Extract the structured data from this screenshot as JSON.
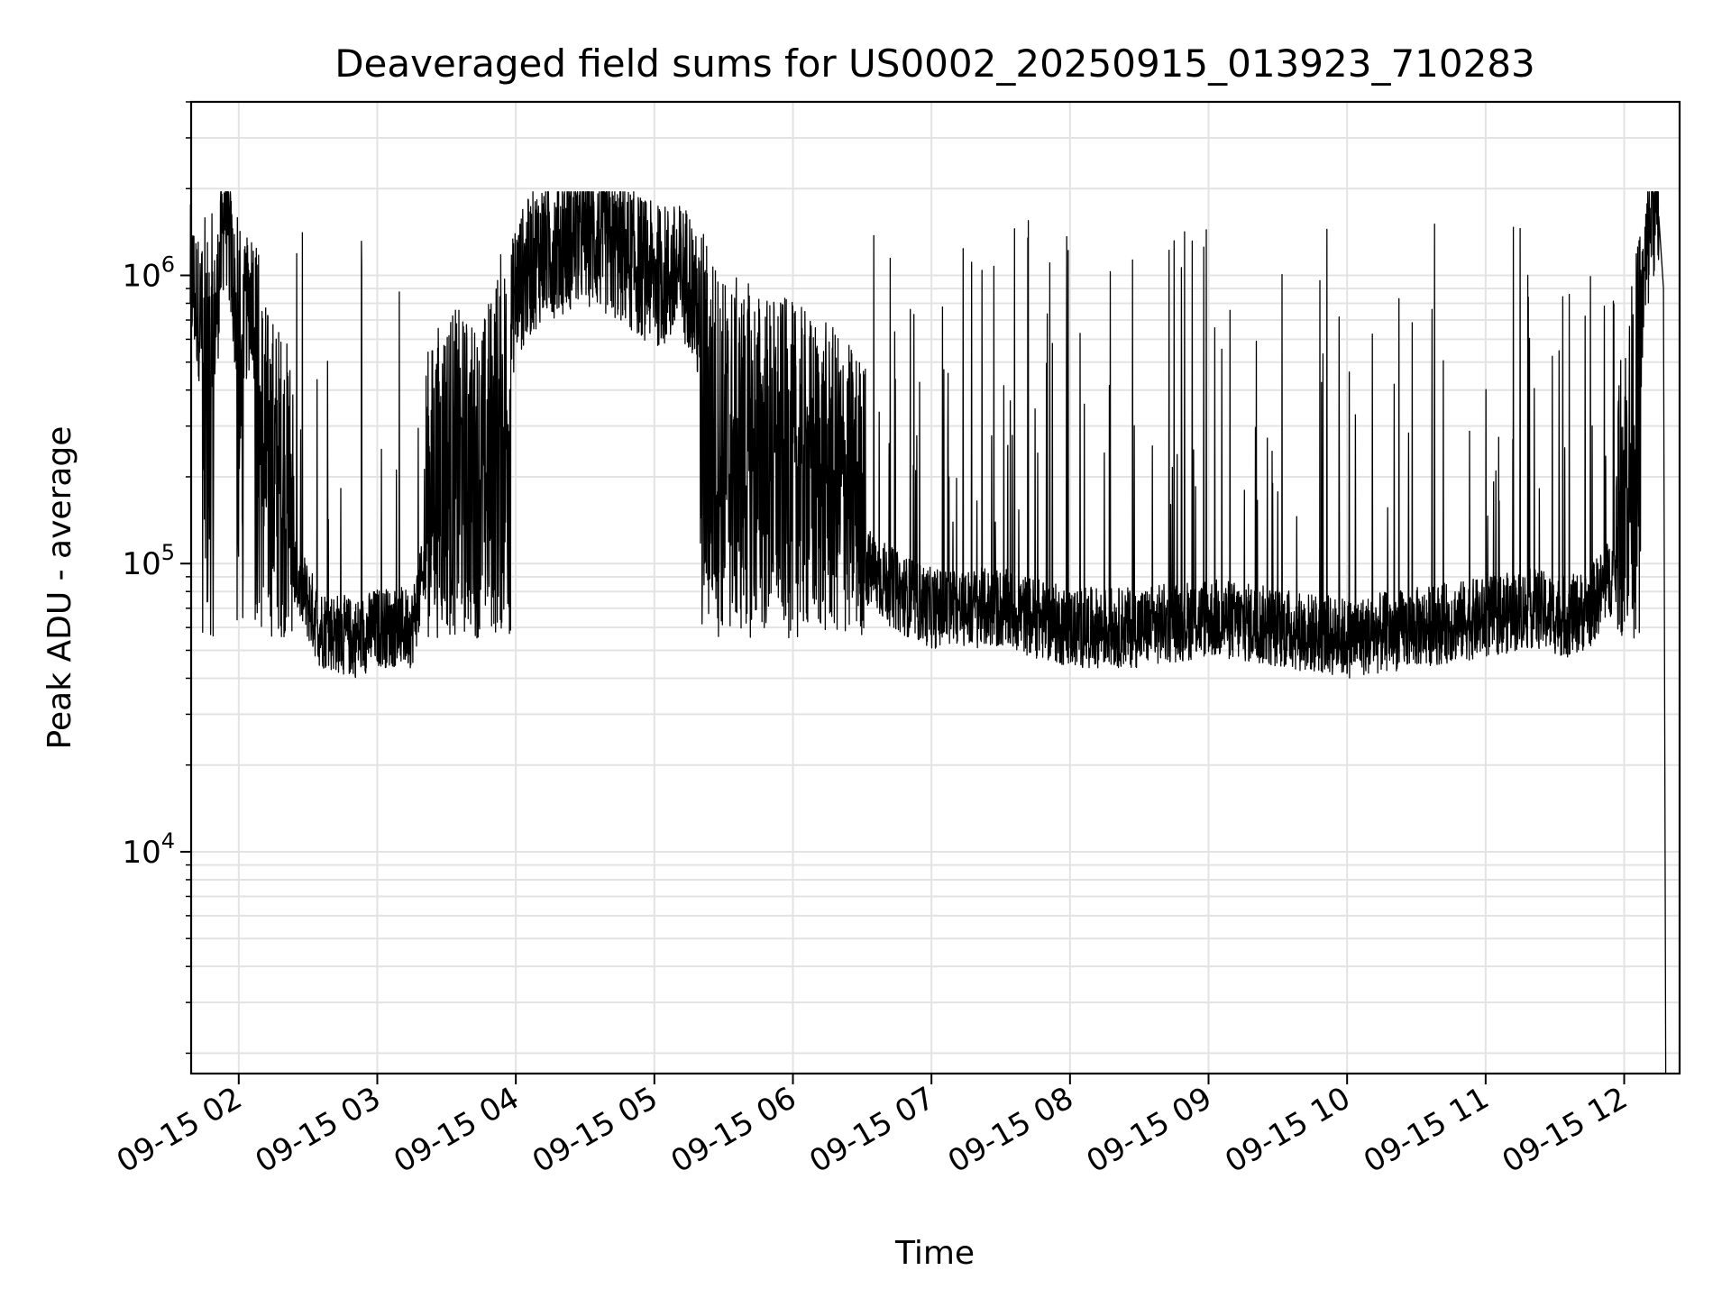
{
  "chart_data": {
    "type": "line",
    "title": "Deaveraged field sums for US0002_20250915_013923_710283",
    "xlabel": "Time",
    "ylabel": "Peak ADU - average",
    "yscale": "log",
    "grid": true,
    "xlim": [
      "2025-09-15 01:39:23",
      "2025-09-15 12:24:00"
    ],
    "ylim": [
      1700,
      4000000
    ],
    "x_ticks": [
      {
        "value": "2025-09-15 02:00",
        "label": "09-15 02"
      },
      {
        "value": "2025-09-15 03:00",
        "label": "09-15 03"
      },
      {
        "value": "2025-09-15 04:00",
        "label": "09-15 04"
      },
      {
        "value": "2025-09-15 05:00",
        "label": "09-15 05"
      },
      {
        "value": "2025-09-15 06:00",
        "label": "09-15 06"
      },
      {
        "value": "2025-09-15 07:00",
        "label": "09-15 07"
      },
      {
        "value": "2025-09-15 08:00",
        "label": "09-15 08"
      },
      {
        "value": "2025-09-15 09:00",
        "label": "09-15 09"
      },
      {
        "value": "2025-09-15 10:00",
        "label": "09-15 10"
      },
      {
        "value": "2025-09-15 11:00",
        "label": "09-15 11"
      },
      {
        "value": "2025-09-15 12:00",
        "label": "09-15 12"
      }
    ],
    "y_ticks": [
      {
        "value": 10000,
        "base": "10",
        "exp": "4"
      },
      {
        "value": 100000,
        "base": "10",
        "exp": "5"
      },
      {
        "value": 1000000,
        "base": "10",
        "exp": "6"
      }
    ],
    "series": [
      {
        "color": "#000000",
        "x": [
          "2025-09-15 01:39",
          "2025-09-15 01:45",
          "2025-09-15 01:50",
          "2025-09-15 01:54",
          "2025-09-15 01:56",
          "2025-09-15 02:00",
          "2025-09-15 02:06",
          "2025-09-15 02:12",
          "2025-09-15 02:18",
          "2025-09-15 02:25",
          "2025-09-15 02:35",
          "2025-09-15 02:50",
          "2025-09-15 03:00",
          "2025-09-15 03:15",
          "2025-09-15 03:30",
          "2025-09-15 03:45",
          "2025-09-15 04:00",
          "2025-09-15 04:10",
          "2025-09-15 04:20",
          "2025-09-15 04:30",
          "2025-09-15 04:45",
          "2025-09-15 05:00",
          "2025-09-15 05:15",
          "2025-09-15 05:30",
          "2025-09-15 05:45",
          "2025-09-15 06:00",
          "2025-09-15 06:15",
          "2025-09-15 06:30",
          "2025-09-15 06:45",
          "2025-09-15 07:00",
          "2025-09-15 07:30",
          "2025-09-15 08:00",
          "2025-09-15 08:30",
          "2025-09-15 09:00",
          "2025-09-15 09:30",
          "2025-09-15 10:00",
          "2025-09-15 10:30",
          "2025-09-15 11:00",
          "2025-09-15 11:20",
          "2025-09-15 11:35",
          "2025-09-15 11:45",
          "2025-09-15 11:52",
          "2025-09-15 11:58",
          "2025-09-15 12:02",
          "2025-09-15 12:06",
          "2025-09-15 12:09",
          "2025-09-15 12:12",
          "2025-09-15 12:15",
          "2025-09-15 12:18"
        ],
        "y": [
          1000000,
          650000,
          700000,
          1800000,
          1300000,
          600000,
          900000,
          200000,
          150000,
          90000,
          60000,
          55000,
          60000,
          60000,
          200000,
          150000,
          900000,
          1200000,
          1300000,
          1400000,
          1200000,
          1000000,
          1000000,
          300000,
          250000,
          200000,
          150000,
          100000,
          80000,
          70000,
          70000,
          60000,
          60000,
          65000,
          60000,
          55000,
          60000,
          65000,
          70000,
          65000,
          70000,
          85000,
          100000,
          200000,
          500000,
          1000000,
          1800000,
          1600000,
          1700
        ]
      }
    ]
  }
}
